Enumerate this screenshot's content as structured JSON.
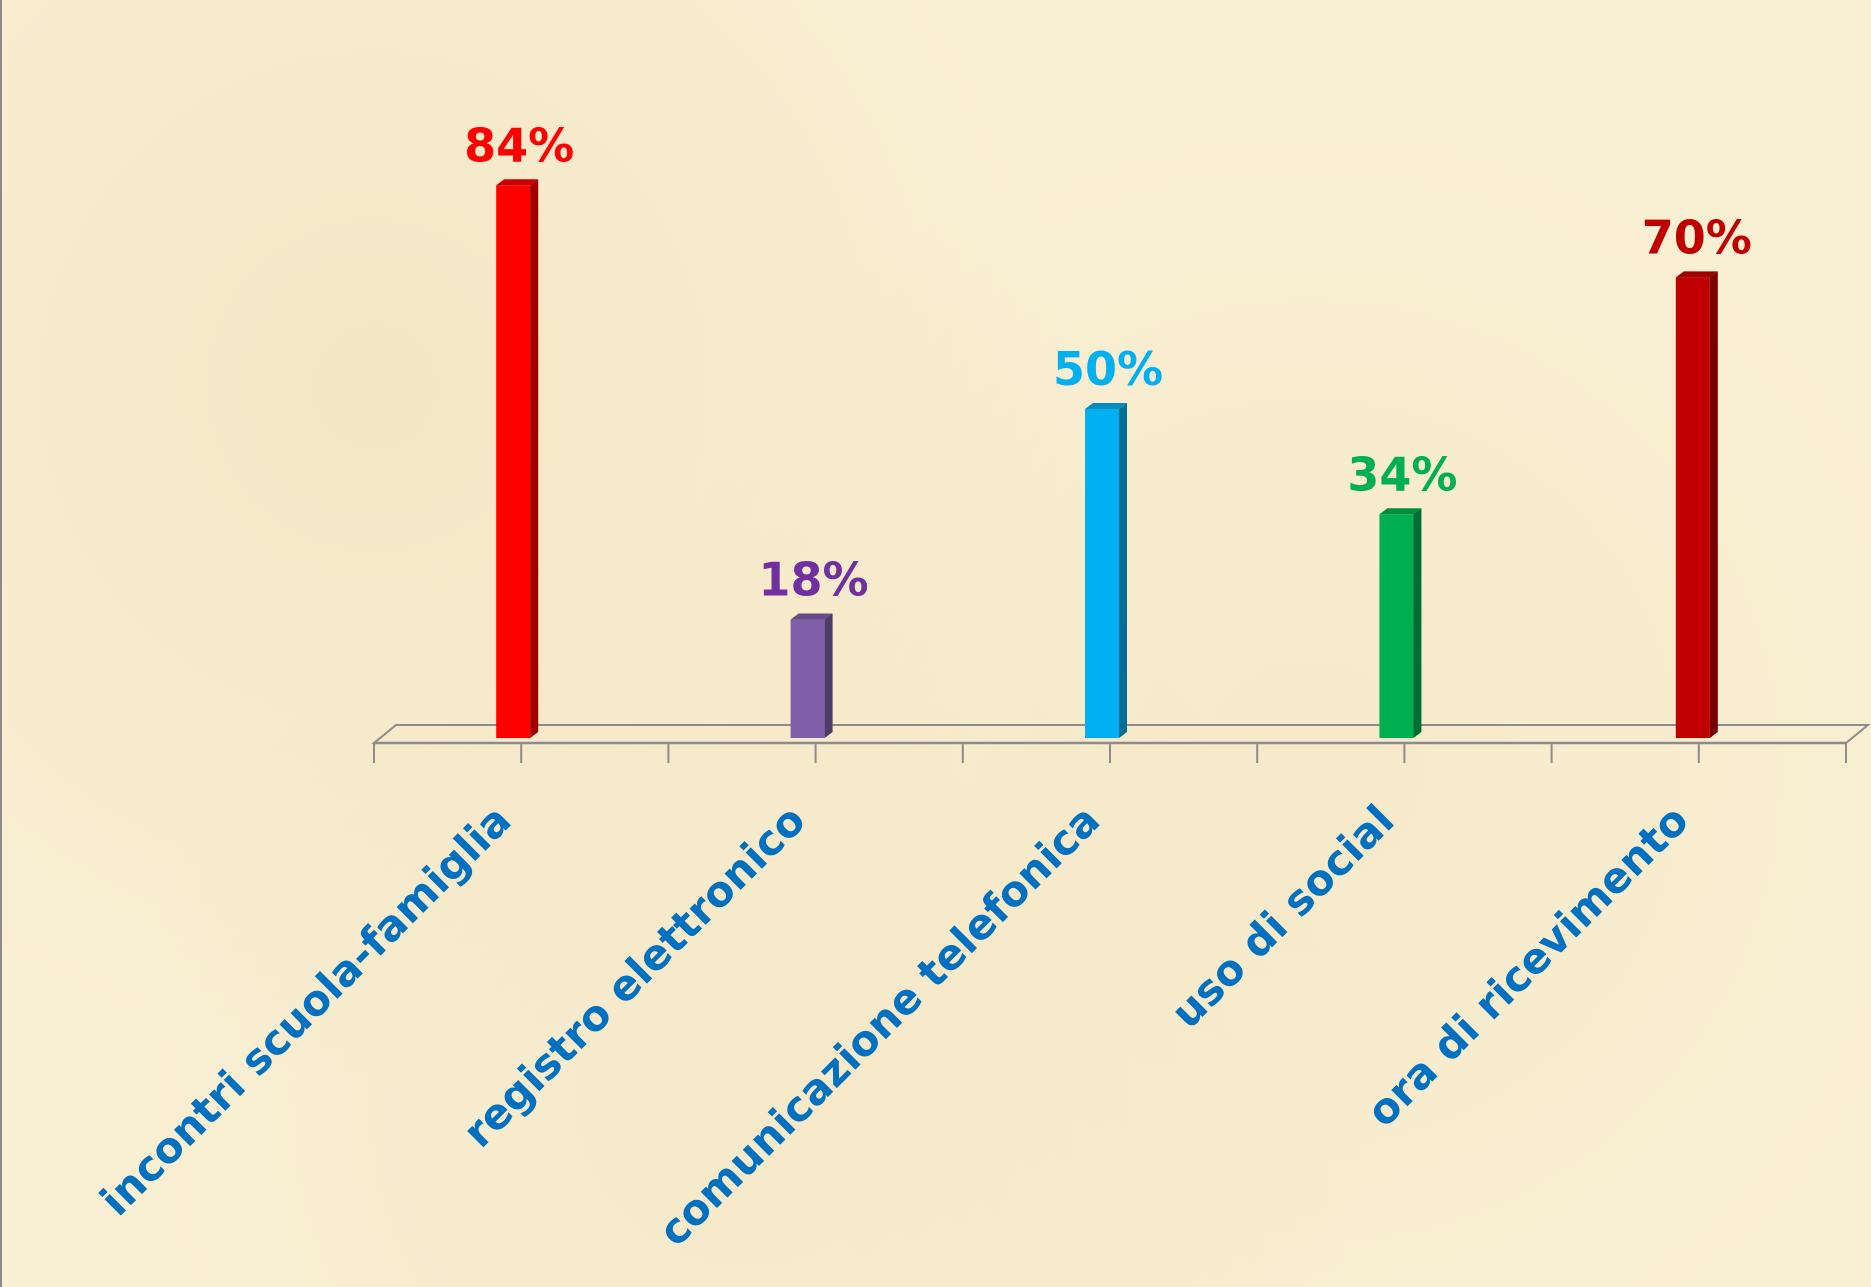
{
  "chart_data": {
    "type": "bar",
    "title": "",
    "xlabel": "",
    "ylabel": "",
    "unit": "%",
    "ylim": [
      0,
      100
    ],
    "grid": false,
    "legend": "none",
    "categories": [
      "incontri scuola-famiglia",
      "registro elettronico",
      "comunicazione telefonica",
      "uso di social",
      "ora di ricevimento"
    ],
    "values": [
      84,
      18,
      50,
      34,
      70
    ],
    "value_labels": [
      "84%",
      "18%",
      "50%",
      "34%",
      "70%"
    ],
    "bar_colors": [
      "#ff0000",
      "#7f5fa8",
      "#00b0f0",
      "#00b050",
      "#c00000"
    ],
    "value_label_colors": [
      "#ff0000",
      "#7030a0",
      "#00b0f0",
      "#00b050",
      "#c00000"
    ],
    "category_label_color": "#0070c0",
    "axis_color": "#8c8c8c"
  }
}
